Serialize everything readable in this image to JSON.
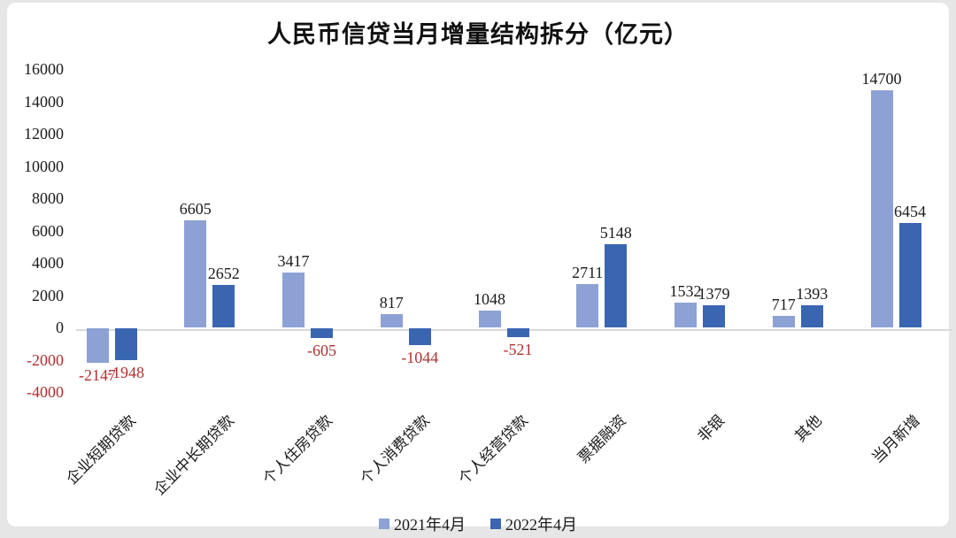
{
  "title": "人民币信贷当月增量结构拆分（亿元）",
  "colors": {
    "series1": "#8da1d4",
    "series2": "#3a66b1",
    "positive_label": "#1a1a1a",
    "negative_label": "#b03030",
    "axis_line": "#d9d9d9",
    "card_background": "#ffffff",
    "page_background": "#e6e6e6"
  },
  "chart_data": {
    "type": "bar",
    "title": "人民币信贷当月增量结构拆分（亿元）",
    "categories": [
      "企业短期贷款",
      "企业中长期贷款",
      "个人住房贷款",
      "个人消费贷款",
      "个人经营贷款",
      "票据融资",
      "非银",
      "其他",
      "当月新增"
    ],
    "series": [
      {
        "name": "2021年4月",
        "values": [
          -2147,
          6605,
          3417,
          817,
          1048,
          2711,
          1532,
          717,
          14700
        ]
      },
      {
        "name": "2022年4月",
        "values": [
          -1948,
          2652,
          -605,
          -1044,
          -521,
          5148,
          1379,
          1393,
          6454
        ]
      }
    ],
    "ylim": [
      -4000,
      16000
    ],
    "ytick_step": 2000,
    "yticks": [
      16000,
      14000,
      12000,
      10000,
      8000,
      6000,
      4000,
      2000,
      0,
      -2000,
      -4000
    ],
    "grid": false,
    "data_labels": true,
    "legend_position": "bottom",
    "negative_values_in_red": true
  }
}
